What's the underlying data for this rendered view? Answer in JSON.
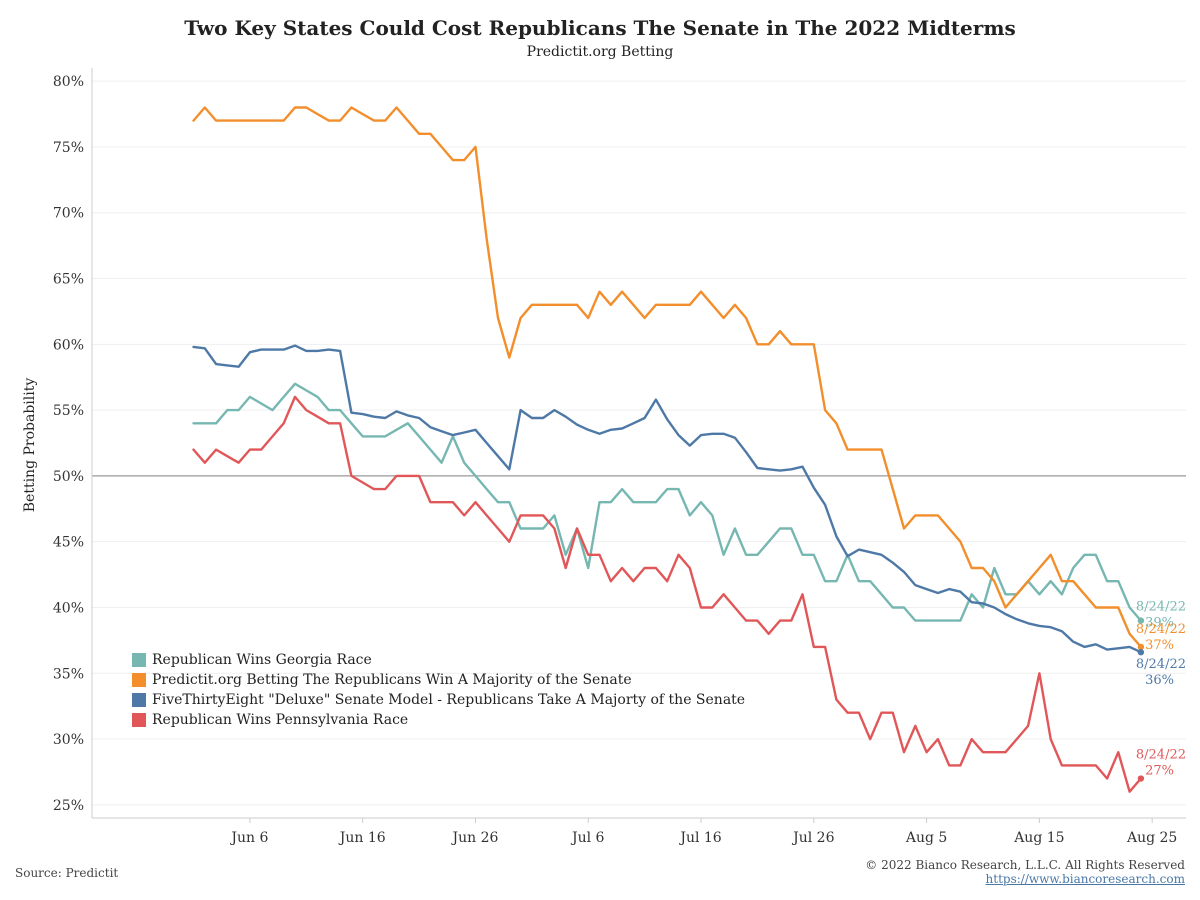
{
  "title": "Two Key States Could Cost Republicans The Senate in The 2022 Midterms",
  "subtitle": "Predictit.org Betting",
  "source": "Source: Predictit",
  "copyright": "© 2022 Bianco Research, L.L.C. All Rights Reserved",
  "url": "https://www.biancoresearch.com",
  "chart_data": {
    "type": "line",
    "ylabel": "Betting Probability",
    "xlabel": "",
    "ylim": [
      24,
      81
    ],
    "y_ticks": [
      "25%",
      "30%",
      "35%",
      "40%",
      "45%",
      "50%",
      "55%",
      "60%",
      "65%",
      "70%",
      "75%",
      "80%"
    ],
    "y_tick_values": [
      25,
      30,
      35,
      40,
      45,
      50,
      55,
      60,
      65,
      70,
      75,
      80
    ],
    "x_range": [
      "2022-05-23",
      "2022-08-28"
    ],
    "x_ticks": [
      "Jun 6",
      "Jun 16",
      "Jun 26",
      "Jul 6",
      "Jul 16",
      "Jul 26",
      "Aug 5",
      "Aug 15",
      "Aug 25"
    ],
    "x_tick_dates": [
      "2022-06-06",
      "2022-06-16",
      "2022-06-26",
      "2022-07-06",
      "2022-07-16",
      "2022-07-26",
      "2022-08-05",
      "2022-08-15",
      "2022-08-25"
    ],
    "reference_line": 50,
    "grid": true,
    "legend_position": "bottom-left",
    "series": [
      {
        "name": "Republican Wins Georgia Race",
        "color": "#76b7b2",
        "end_label_date": "8/24/22",
        "end_label_value": "39%",
        "x": [
          "2022-06-01",
          "2022-06-02",
          "2022-06-03",
          "2022-06-04",
          "2022-06-05",
          "2022-06-06",
          "2022-06-07",
          "2022-06-08",
          "2022-06-09",
          "2022-06-10",
          "2022-06-11",
          "2022-06-12",
          "2022-06-13",
          "2022-06-14",
          "2022-06-15",
          "2022-06-16",
          "2022-06-17",
          "2022-06-18",
          "2022-06-19",
          "2022-06-20",
          "2022-06-21",
          "2022-06-22",
          "2022-06-23",
          "2022-06-24",
          "2022-06-25",
          "2022-06-26",
          "2022-06-27",
          "2022-06-28",
          "2022-06-29",
          "2022-06-30",
          "2022-07-01",
          "2022-07-02",
          "2022-07-03",
          "2022-07-04",
          "2022-07-05",
          "2022-07-06",
          "2022-07-07",
          "2022-07-08",
          "2022-07-09",
          "2022-07-10",
          "2022-07-11",
          "2022-07-12",
          "2022-07-13",
          "2022-07-14",
          "2022-07-15",
          "2022-07-16",
          "2022-07-17",
          "2022-07-18",
          "2022-07-19",
          "2022-07-20",
          "2022-07-21",
          "2022-07-22",
          "2022-07-23",
          "2022-07-24",
          "2022-07-25",
          "2022-07-26",
          "2022-07-27",
          "2022-07-28",
          "2022-07-29",
          "2022-07-30",
          "2022-07-31",
          "2022-08-01",
          "2022-08-02",
          "2022-08-03",
          "2022-08-04",
          "2022-08-05",
          "2022-08-06",
          "2022-08-07",
          "2022-08-08",
          "2022-08-09",
          "2022-08-10",
          "2022-08-11",
          "2022-08-12",
          "2022-08-13",
          "2022-08-14",
          "2022-08-15",
          "2022-08-16",
          "2022-08-17",
          "2022-08-18",
          "2022-08-19",
          "2022-08-20",
          "2022-08-21",
          "2022-08-22",
          "2022-08-23",
          "2022-08-24"
        ],
        "values": [
          54,
          54,
          54,
          55,
          55,
          56,
          55.5,
          55,
          56,
          57,
          56.5,
          56,
          55,
          55,
          54,
          53,
          53,
          53,
          53.5,
          54,
          53,
          52,
          51,
          53,
          51,
          50,
          49,
          48,
          48,
          46,
          46,
          46,
          47,
          44,
          46,
          43,
          48,
          48,
          49,
          48,
          48,
          48,
          49,
          49,
          47,
          48,
          47,
          44,
          46,
          44,
          44,
          45,
          46,
          46,
          44,
          44,
          42,
          42,
          44,
          42,
          42,
          41,
          40,
          40,
          39,
          39,
          39,
          39,
          39,
          41,
          40,
          43,
          41,
          41,
          42,
          41,
          42,
          41,
          43,
          44,
          44,
          42,
          42,
          40,
          39
        ]
      },
      {
        "name": "Predictit.org Betting The Republicans Win A Majority of the Senate",
        "color": "#f28e2b",
        "end_label_date": "8/24/22",
        "end_label_value": "37%",
        "x": [
          "2022-06-01",
          "2022-06-02",
          "2022-06-03",
          "2022-06-04",
          "2022-06-05",
          "2022-06-06",
          "2022-06-07",
          "2022-06-08",
          "2022-06-09",
          "2022-06-10",
          "2022-06-11",
          "2022-06-12",
          "2022-06-13",
          "2022-06-14",
          "2022-06-15",
          "2022-06-16",
          "2022-06-17",
          "2022-06-18",
          "2022-06-19",
          "2022-06-20",
          "2022-06-21",
          "2022-06-22",
          "2022-06-23",
          "2022-06-24",
          "2022-06-25",
          "2022-06-26",
          "2022-06-27",
          "2022-06-28",
          "2022-06-29",
          "2022-06-30",
          "2022-07-01",
          "2022-07-02",
          "2022-07-03",
          "2022-07-04",
          "2022-07-05",
          "2022-07-06",
          "2022-07-07",
          "2022-07-08",
          "2022-07-09",
          "2022-07-10",
          "2022-07-11",
          "2022-07-12",
          "2022-07-13",
          "2022-07-14",
          "2022-07-15",
          "2022-07-16",
          "2022-07-17",
          "2022-07-18",
          "2022-07-19",
          "2022-07-20",
          "2022-07-21",
          "2022-07-22",
          "2022-07-23",
          "2022-07-24",
          "2022-07-25",
          "2022-07-26",
          "2022-07-27",
          "2022-07-28",
          "2022-07-29",
          "2022-07-30",
          "2022-07-31",
          "2022-08-01",
          "2022-08-02",
          "2022-08-03",
          "2022-08-04",
          "2022-08-05",
          "2022-08-06",
          "2022-08-07",
          "2022-08-08",
          "2022-08-09",
          "2022-08-10",
          "2022-08-11",
          "2022-08-12",
          "2022-08-13",
          "2022-08-14",
          "2022-08-15",
          "2022-08-16",
          "2022-08-17",
          "2022-08-18",
          "2022-08-19",
          "2022-08-20",
          "2022-08-21",
          "2022-08-22",
          "2022-08-23",
          "2022-08-24"
        ],
        "values": [
          77,
          78,
          77,
          77,
          77,
          77,
          77,
          77,
          77,
          78,
          78,
          77.5,
          77,
          77,
          78,
          77.5,
          77,
          77,
          78,
          77,
          76,
          76,
          75,
          74,
          74,
          75,
          68,
          62,
          59,
          62,
          63,
          63,
          63,
          63,
          63,
          62,
          64,
          63,
          64,
          63,
          62,
          63,
          63,
          63,
          63,
          64,
          63,
          62,
          63,
          62,
          60,
          60,
          61,
          60,
          60,
          60,
          55,
          54,
          52,
          52,
          52,
          52,
          49,
          46,
          47,
          47,
          47,
          46,
          45,
          43,
          43,
          42,
          40,
          41,
          42,
          43,
          44,
          42,
          42,
          41,
          40,
          40,
          40,
          38,
          37
        ]
      },
      {
        "name": "FiveThirtyEight \"Deluxe\" Senate Model - Republicans Take A Majorty of the Senate",
        "color": "#4e79a7",
        "end_label_date": "8/24/22",
        "end_label_value": "36%",
        "x": [
          "2022-06-01",
          "2022-06-02",
          "2022-06-03",
          "2022-06-04",
          "2022-06-05",
          "2022-06-06",
          "2022-06-07",
          "2022-06-08",
          "2022-06-09",
          "2022-06-10",
          "2022-06-11",
          "2022-06-12",
          "2022-06-13",
          "2022-06-14",
          "2022-06-15",
          "2022-06-16",
          "2022-06-17",
          "2022-06-18",
          "2022-06-19",
          "2022-06-20",
          "2022-06-21",
          "2022-06-22",
          "2022-06-23",
          "2022-06-24",
          "2022-06-25",
          "2022-06-26",
          "2022-06-27",
          "2022-06-28",
          "2022-06-29",
          "2022-06-30",
          "2022-07-01",
          "2022-07-02",
          "2022-07-03",
          "2022-07-04",
          "2022-07-05",
          "2022-07-06",
          "2022-07-07",
          "2022-07-08",
          "2022-07-09",
          "2022-07-10",
          "2022-07-11",
          "2022-07-12",
          "2022-07-13",
          "2022-07-14",
          "2022-07-15",
          "2022-07-16",
          "2022-07-17",
          "2022-07-18",
          "2022-07-19",
          "2022-07-20",
          "2022-07-21",
          "2022-07-22",
          "2022-07-23",
          "2022-07-24",
          "2022-07-25",
          "2022-07-26",
          "2022-07-27",
          "2022-07-28",
          "2022-07-29",
          "2022-07-30",
          "2022-07-31",
          "2022-08-01",
          "2022-08-02",
          "2022-08-03",
          "2022-08-04",
          "2022-08-05",
          "2022-08-06",
          "2022-08-07",
          "2022-08-08",
          "2022-08-09",
          "2022-08-10",
          "2022-08-11",
          "2022-08-12",
          "2022-08-13",
          "2022-08-14",
          "2022-08-15",
          "2022-08-16",
          "2022-08-17",
          "2022-08-18",
          "2022-08-19",
          "2022-08-20",
          "2022-08-21",
          "2022-08-22",
          "2022-08-23",
          "2022-08-24"
        ],
        "values": [
          59.8,
          59.7,
          58.5,
          58.4,
          58.3,
          59.4,
          59.6,
          59.6,
          59.6,
          59.9,
          59.5,
          59.5,
          59.6,
          59.5,
          54.8,
          54.7,
          54.5,
          54.4,
          54.9,
          54.6,
          54.4,
          53.7,
          53.4,
          53.1,
          53.3,
          53.5,
          52.5,
          51.5,
          50.5,
          55,
          54.4,
          54.4,
          55,
          54.5,
          53.9,
          53.5,
          53.2,
          53.5,
          53.6,
          54,
          54.4,
          55.8,
          54.3,
          53.1,
          52.3,
          53.1,
          53.2,
          53.2,
          52.9,
          51.8,
          50.6,
          50.5,
          50.4,
          50.5,
          50.7,
          49.1,
          47.8,
          45.4,
          43.9,
          44.4,
          44.2,
          44,
          43.4,
          42.7,
          41.7,
          41.4,
          41.1,
          41.4,
          41.2,
          40.4,
          40.3,
          40,
          39.5,
          39.1,
          38.8,
          38.6,
          38.5,
          38.2,
          37.4,
          37,
          37.2,
          36.8,
          36.9,
          37,
          36.6
        ]
      },
      {
        "name": "Republican Wins Pennsylvania Race",
        "color": "#e15759",
        "end_label_date": "8/24/22",
        "end_label_value": "27%",
        "x": [
          "2022-06-01",
          "2022-06-02",
          "2022-06-03",
          "2022-06-04",
          "2022-06-05",
          "2022-06-06",
          "2022-06-07",
          "2022-06-08",
          "2022-06-09",
          "2022-06-10",
          "2022-06-11",
          "2022-06-12",
          "2022-06-13",
          "2022-06-14",
          "2022-06-15",
          "2022-06-16",
          "2022-06-17",
          "2022-06-18",
          "2022-06-19",
          "2022-06-20",
          "2022-06-21",
          "2022-06-22",
          "2022-06-23",
          "2022-06-24",
          "2022-06-25",
          "2022-06-26",
          "2022-06-27",
          "2022-06-28",
          "2022-06-29",
          "2022-06-30",
          "2022-07-01",
          "2022-07-02",
          "2022-07-03",
          "2022-07-04",
          "2022-07-05",
          "2022-07-06",
          "2022-07-07",
          "2022-07-08",
          "2022-07-09",
          "2022-07-10",
          "2022-07-11",
          "2022-07-12",
          "2022-07-13",
          "2022-07-14",
          "2022-07-15",
          "2022-07-16",
          "2022-07-17",
          "2022-07-18",
          "2022-07-19",
          "2022-07-20",
          "2022-07-21",
          "2022-07-22",
          "2022-07-23",
          "2022-07-24",
          "2022-07-25",
          "2022-07-26",
          "2022-07-27",
          "2022-07-28",
          "2022-07-29",
          "2022-07-30",
          "2022-07-31",
          "2022-08-01",
          "2022-08-02",
          "2022-08-03",
          "2022-08-04",
          "2022-08-05",
          "2022-08-06",
          "2022-08-07",
          "2022-08-08",
          "2022-08-09",
          "2022-08-10",
          "2022-08-11",
          "2022-08-12",
          "2022-08-13",
          "2022-08-14",
          "2022-08-15",
          "2022-08-16",
          "2022-08-17",
          "2022-08-18",
          "2022-08-19",
          "2022-08-20",
          "2022-08-21",
          "2022-08-22",
          "2022-08-23",
          "2022-08-24"
        ],
        "values": [
          52,
          51,
          52,
          51.5,
          51,
          52,
          52,
          53,
          54,
          56,
          55,
          54.5,
          54,
          54,
          50,
          49.5,
          49,
          49,
          50,
          50,
          50,
          48,
          48,
          48,
          47,
          48,
          47,
          46,
          45,
          47,
          47,
          47,
          46,
          43,
          46,
          44,
          44,
          42,
          43,
          42,
          43,
          43,
          42,
          44,
          43,
          40,
          40,
          41,
          40,
          39,
          39,
          38,
          39,
          39,
          41,
          37,
          37,
          33,
          32,
          32,
          30,
          32,
          32,
          29,
          31,
          29,
          30,
          28,
          28,
          30,
          29,
          29,
          29,
          30,
          31,
          35,
          30,
          28,
          28,
          28,
          28,
          27,
          29,
          26,
          27
        ]
      }
    ]
  }
}
